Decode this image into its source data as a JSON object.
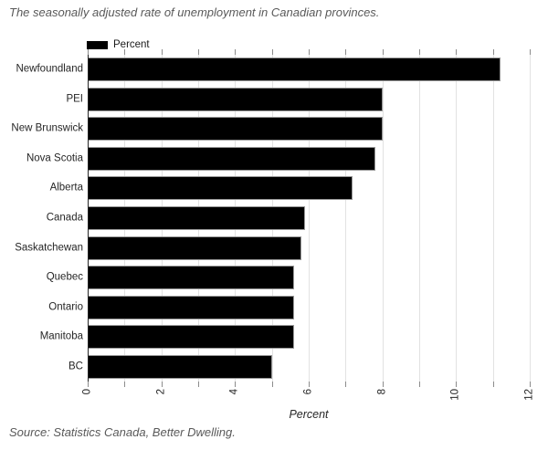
{
  "header": {
    "title": "The seasonally adjusted rate of unemployment in Canadian provinces."
  },
  "legend": {
    "label": "Percent",
    "swatch_color": "#000000"
  },
  "footer": {
    "source": "Source: Statistics Canada, Better Dwelling."
  },
  "chart_data": {
    "type": "bar",
    "orientation": "horizontal",
    "title": "The seasonally adjusted rate of unemployment in Canadian provinces.",
    "xlabel": "Percent",
    "ylabel": "",
    "categories": [
      "Newfoundland",
      "PEI",
      "New Brunswick",
      "Nova Scotia",
      "Alberta",
      "Canada",
      "Saskatchewan",
      "Quebec",
      "Ontario",
      "Manitoba",
      "BC"
    ],
    "values": [
      11.2,
      8.0,
      8.0,
      7.8,
      7.2,
      5.9,
      5.8,
      5.6,
      5.6,
      5.6,
      5.0
    ],
    "series_name": "Percent",
    "xlim": [
      0,
      12
    ],
    "xticks": [
      0,
      2,
      4,
      6,
      8,
      10,
      12
    ],
    "xtick_labels": [
      "0",
      "2",
      "4",
      "6",
      "8",
      "10",
      "12"
    ],
    "xtick_rotation": 90,
    "minor_tick_step": 1,
    "grid": "vertical, every 1 unit",
    "legend_position": "top-left",
    "bar_color": "#000000",
    "bar_edge_color": "#979797"
  },
  "colors": {
    "background": "#ffffff",
    "title_text": "#595959",
    "axis_text": "#262626",
    "gridline": "#e2e2e2",
    "tick": "#8c8c8c",
    "spine": "#262626"
  }
}
